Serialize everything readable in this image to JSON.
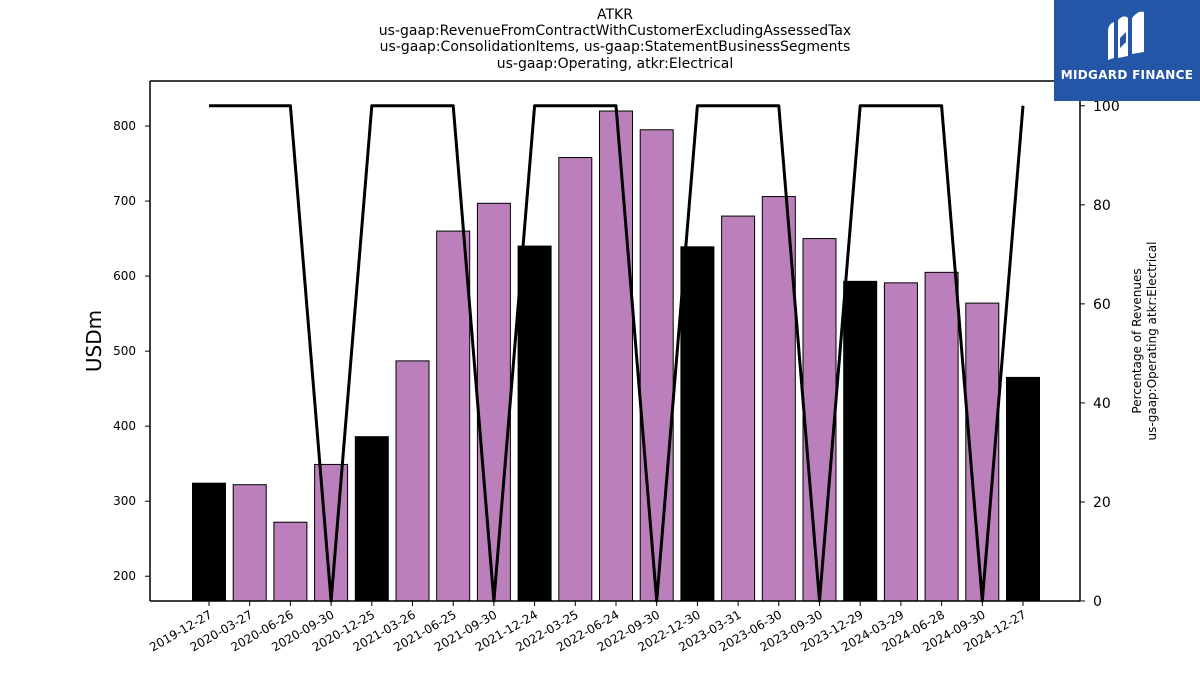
{
  "chart_data": {
    "type": "bar",
    "title_lines": [
      "ATKR",
      "us-gaap:RevenueFromContractWithCustomerExcludingAssessedTax",
      "us-gaap:ConsolidationItems, us-gaap:StatementBusinessSegments",
      "us-gaap:Operating, atkr:Electrical"
    ],
    "ylabel": "USDm",
    "ylabel_right": [
      "Percentage of Revenues",
      "us-gaap:Operating atkr:Electrical"
    ],
    "ylim": [
      167,
      860
    ],
    "ylim_right": [
      0,
      105
    ],
    "yticks": [
      200,
      300,
      400,
      500,
      600,
      700,
      800
    ],
    "yticks_right": [
      0,
      20,
      40,
      60,
      80,
      100
    ],
    "categories": [
      "2019-12-27",
      "2020-03-27",
      "2020-06-26",
      "2020-09-30",
      "2020-12-25",
      "2021-03-26",
      "2021-06-25",
      "2021-09-30",
      "2021-12-24",
      "2022-03-25",
      "2022-06-24",
      "2022-09-30",
      "2022-12-30",
      "2023-03-31",
      "2023-06-30",
      "2023-09-30",
      "2023-12-29",
      "2024-03-29",
      "2024-06-28",
      "2024-09-30",
      "2024-12-27"
    ],
    "series": [
      {
        "type": "bar",
        "values": [
          324,
          322,
          272,
          349,
          386,
          487,
          660,
          697,
          640,
          758,
          820,
          795,
          639,
          680,
          706,
          650,
          593,
          591,
          605,
          564,
          465
        ],
        "colors": [
          "#000000",
          "#bb7fbb",
          "#bb7fbb",
          "#bb7fbb",
          "#000000",
          "#bb7fbb",
          "#bb7fbb",
          "#bb7fbb",
          "#000000",
          "#bb7fbb",
          "#bb7fbb",
          "#bb7fbb",
          "#000000",
          "#bb7fbb",
          "#bb7fbb",
          "#bb7fbb",
          "#000000",
          "#bb7fbb",
          "#bb7fbb",
          "#bb7fbb",
          "#000000"
        ]
      },
      {
        "type": "line",
        "axis": "right",
        "color": "#000000",
        "values": [
          100,
          100,
          100,
          0,
          100,
          100,
          100,
          0,
          100,
          100,
          100,
          0,
          100,
          100,
          100,
          0,
          100,
          100,
          100,
          0,
          100
        ]
      }
    ]
  },
  "logo": {
    "text": "MIDGARD FINANCE",
    "background": "#2456a8"
  }
}
